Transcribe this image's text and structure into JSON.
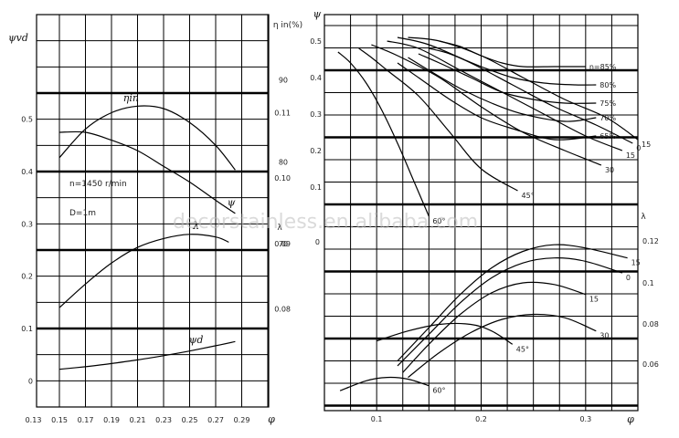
{
  "watermark": "decorstainless.en.alibaba.com",
  "chart_data": [
    {
      "type": "line",
      "panel": "left",
      "xlabel": "φ",
      "x_ticks": [
        "0.13",
        "0.15",
        "0.17",
        "0.19",
        "0.21",
        "0.23",
        "0.25",
        "0.27",
        "0.29"
      ],
      "xlim": [
        0.13,
        0.29
      ],
      "left_axis": {
        "label": "ψvd",
        "ticks": [
          "0",
          "0.1",
          "0.2",
          "0.3",
          "0.4",
          "0.5"
        ],
        "range": [
          -0.05,
          0.7
        ]
      },
      "eta_axis": {
        "label": "η in(%)",
        "ticks": [
          "70",
          "80",
          "90"
        ],
        "range": [
          50,
          98
        ]
      },
      "lambda_axis": {
        "label": "λ",
        "ticks": [
          "0.08",
          "0.09",
          "0.10",
          "0.11"
        ],
        "range": [
          0.065,
          0.125
        ]
      },
      "annotations": [
        "n=1450 r/min",
        "D=1m"
      ],
      "series": [
        {
          "name": "ηin",
          "axis": "eta_axis",
          "label_pos": [
            0.205,
            87.4
          ],
          "x": [
            0.15,
            0.17,
            0.19,
            0.21,
            0.23,
            0.25,
            0.27,
            0.285
          ],
          "y": [
            80.5,
            84.0,
            86.0,
            86.8,
            86.5,
            84.8,
            82.0,
            79.0
          ]
        },
        {
          "name": "ψ",
          "axis": "left_axis",
          "label_pos": [
            0.282,
            0.335
          ],
          "x": [
            0.15,
            0.17,
            0.19,
            0.21,
            0.23,
            0.25,
            0.27,
            0.285
          ],
          "y": [
            0.475,
            0.475,
            0.46,
            0.44,
            0.41,
            0.38,
            0.345,
            0.32
          ]
        },
        {
          "name": "λ",
          "axis": "left_axis",
          "label_pos": [
            0.255,
            0.29
          ],
          "x": [
            0.15,
            0.17,
            0.19,
            0.21,
            0.23,
            0.25,
            0.27,
            0.28
          ],
          "y": [
            0.14,
            0.185,
            0.225,
            0.255,
            0.272,
            0.28,
            0.275,
            0.265
          ]
        },
        {
          "name": "ψd",
          "axis": "left_axis",
          "label_pos": [
            0.255,
            0.072
          ],
          "x": [
            0.15,
            0.17,
            0.19,
            0.21,
            0.23,
            0.25,
            0.27,
            0.285
          ],
          "y": [
            0.022,
            0.027,
            0.033,
            0.04,
            0.048,
            0.057,
            0.067,
            0.075
          ]
        }
      ]
    },
    {
      "type": "line",
      "panel": "right",
      "xlabel": "φ",
      "x_ticks": [
        "0.1",
        "0.2",
        "0.3"
      ],
      "xlim": [
        0.05,
        0.35
      ],
      "psi_axis": {
        "label": "ψ",
        "ticks": [
          "0.1",
          "0.2",
          "0.3",
          "0.4",
          "0.5"
        ],
        "range": [
          -0.05,
          0.55
        ]
      },
      "lambda_axis": {
        "label": "λ",
        "ticks": [
          "0",
          "0.12",
          "0.1",
          "0.08",
          "0.06"
        ]
      },
      "pressure_series": [
        {
          "name": "60°",
          "x": [
            0.063,
            0.075,
            0.09,
            0.105,
            0.12,
            0.135,
            0.15
          ],
          "y": [
            0.47,
            0.44,
            0.385,
            0.31,
            0.22,
            0.12,
            0.02
          ]
        },
        {
          "name": "45°",
          "x": [
            0.083,
            0.095,
            0.11,
            0.14,
            0.17,
            0.2,
            0.235
          ],
          "y": [
            0.48,
            0.455,
            0.42,
            0.35,
            0.25,
            0.15,
            0.09
          ]
        },
        {
          "name": "30",
          "x": [
            0.095,
            0.12,
            0.16,
            0.2,
            0.24,
            0.28,
            0.315
          ],
          "y": [
            0.49,
            0.46,
            0.4,
            0.32,
            0.25,
            0.2,
            0.16
          ]
        },
        {
          "name": "15",
          "x": [
            0.11,
            0.14,
            0.18,
            0.22,
            0.26,
            0.3,
            0.335
          ],
          "y": [
            0.5,
            0.48,
            0.42,
            0.36,
            0.3,
            0.24,
            0.2
          ]
        },
        {
          "name": "0",
          "x": [
            0.12,
            0.15,
            0.19,
            0.23,
            0.27,
            0.31,
            0.345
          ],
          "y": [
            0.51,
            0.49,
            0.44,
            0.38,
            0.32,
            0.27,
            0.22
          ]
        },
        {
          "name": "15",
          "x": [
            0.13,
            0.16,
            0.2,
            0.24,
            0.28,
            0.32,
            0.35
          ],
          "y": [
            0.51,
            0.5,
            0.46,
            0.4,
            0.34,
            0.29,
            0.23
          ]
        }
      ],
      "efficiency_contours": [
        {
          "name": "η=85%",
          "x": [
            0.16,
            0.18,
            0.2,
            0.22,
            0.24,
            0.27,
            0.3
          ],
          "y": [
            0.5,
            0.485,
            0.46,
            0.44,
            0.43,
            0.43,
            0.43
          ]
        },
        {
          "name": "80%",
          "x": [
            0.15,
            0.17,
            0.2,
            0.23,
            0.26,
            0.29,
            0.31
          ],
          "y": [
            0.48,
            0.465,
            0.43,
            0.4,
            0.385,
            0.38,
            0.38
          ]
        },
        {
          "name": "75%",
          "x": [
            0.14,
            0.16,
            0.19,
            0.22,
            0.25,
            0.28,
            0.31
          ],
          "y": [
            0.465,
            0.44,
            0.4,
            0.36,
            0.34,
            0.33,
            0.33
          ]
        },
        {
          "name": "70%",
          "x": [
            0.13,
            0.15,
            0.18,
            0.21,
            0.24,
            0.28,
            0.31
          ],
          "y": [
            0.455,
            0.42,
            0.37,
            0.33,
            0.3,
            0.28,
            0.29
          ]
        },
        {
          "name": "65%",
          "x": [
            0.12,
            0.14,
            0.17,
            0.2,
            0.23,
            0.27,
            0.31
          ],
          "y": [
            0.44,
            0.4,
            0.34,
            0.29,
            0.26,
            0.23,
            0.24
          ]
        }
      ],
      "lambda_series": [
        {
          "name": "15",
          "x": [
            0.12,
            0.15,
            0.18,
            0.21,
            0.24,
            0.27,
            0.3,
            0.34
          ],
          "y": [
            0.06,
            0.08,
            0.1,
            0.116,
            0.126,
            0.13,
            0.128,
            0.122
          ]
        },
        {
          "name": "0",
          "x": [
            0.12,
            0.15,
            0.18,
            0.21,
            0.24,
            0.27,
            0.3,
            0.335
          ],
          "y": [
            0.057,
            0.076,
            0.095,
            0.11,
            0.119,
            0.122,
            0.12,
            0.113
          ]
        },
        {
          "name": "15",
          "x": [
            0.125,
            0.15,
            0.18,
            0.21,
            0.24,
            0.27,
            0.3
          ],
          "y": [
            0.053,
            0.07,
            0.088,
            0.101,
            0.107,
            0.106,
            0.1
          ]
        },
        {
          "name": "30",
          "x": [
            0.13,
            0.16,
            0.19,
            0.22,
            0.25,
            0.28,
            0.31
          ],
          "y": [
            0.05,
            0.065,
            0.077,
            0.085,
            0.088,
            0.086,
            0.078
          ]
        },
        {
          "name": "45°",
          "x": [
            0.1,
            0.13,
            0.16,
            0.19,
            0.21,
            0.23
          ],
          "y": [
            0.072,
            0.078,
            0.082,
            0.082,
            0.078,
            0.07
          ]
        },
        {
          "name": "60°",
          "x": [
            0.065,
            0.09,
            0.11,
            0.13,
            0.15
          ],
          "y": [
            0.042,
            0.048,
            0.05,
            0.049,
            0.045
          ]
        }
      ]
    }
  ]
}
